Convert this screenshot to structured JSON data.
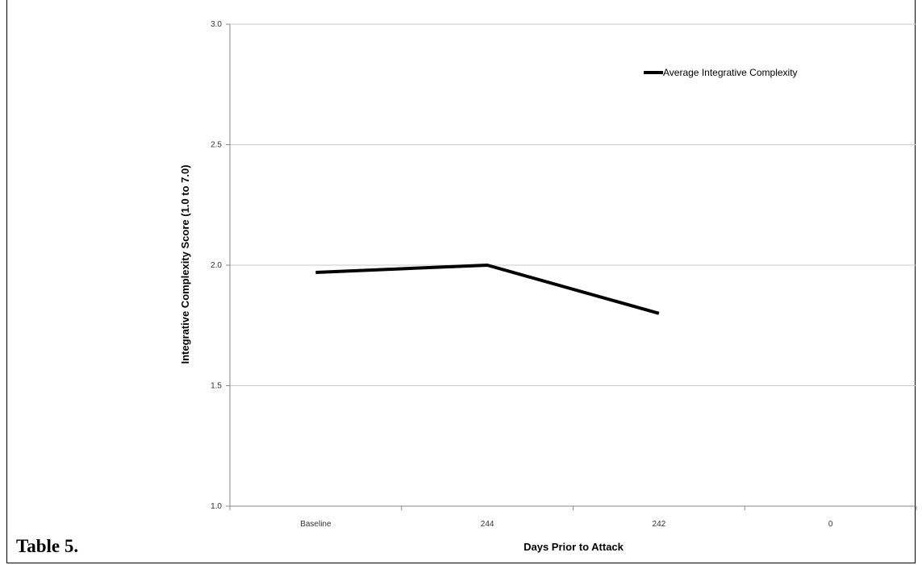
{
  "caption": "Table 5.",
  "chart_data": {
    "type": "line",
    "categories": [
      "Baseline",
      "244",
      "242",
      "0"
    ],
    "series": [
      {
        "name": "Average Integrative Complexity",
        "values": [
          1.97,
          2.0,
          1.8,
          null
        ],
        "color": "#000000"
      }
    ],
    "xlabel": "Days Prior to Attack",
    "ylabel": "Integrative Complexity Score (1.0 to 7.0)",
    "ylim": [
      1.0,
      3.0
    ],
    "yticks": [
      "1.0",
      "1.5",
      "2.0",
      "2.5",
      "3.0"
    ],
    "grid": true,
    "legend_position": "top-right"
  }
}
